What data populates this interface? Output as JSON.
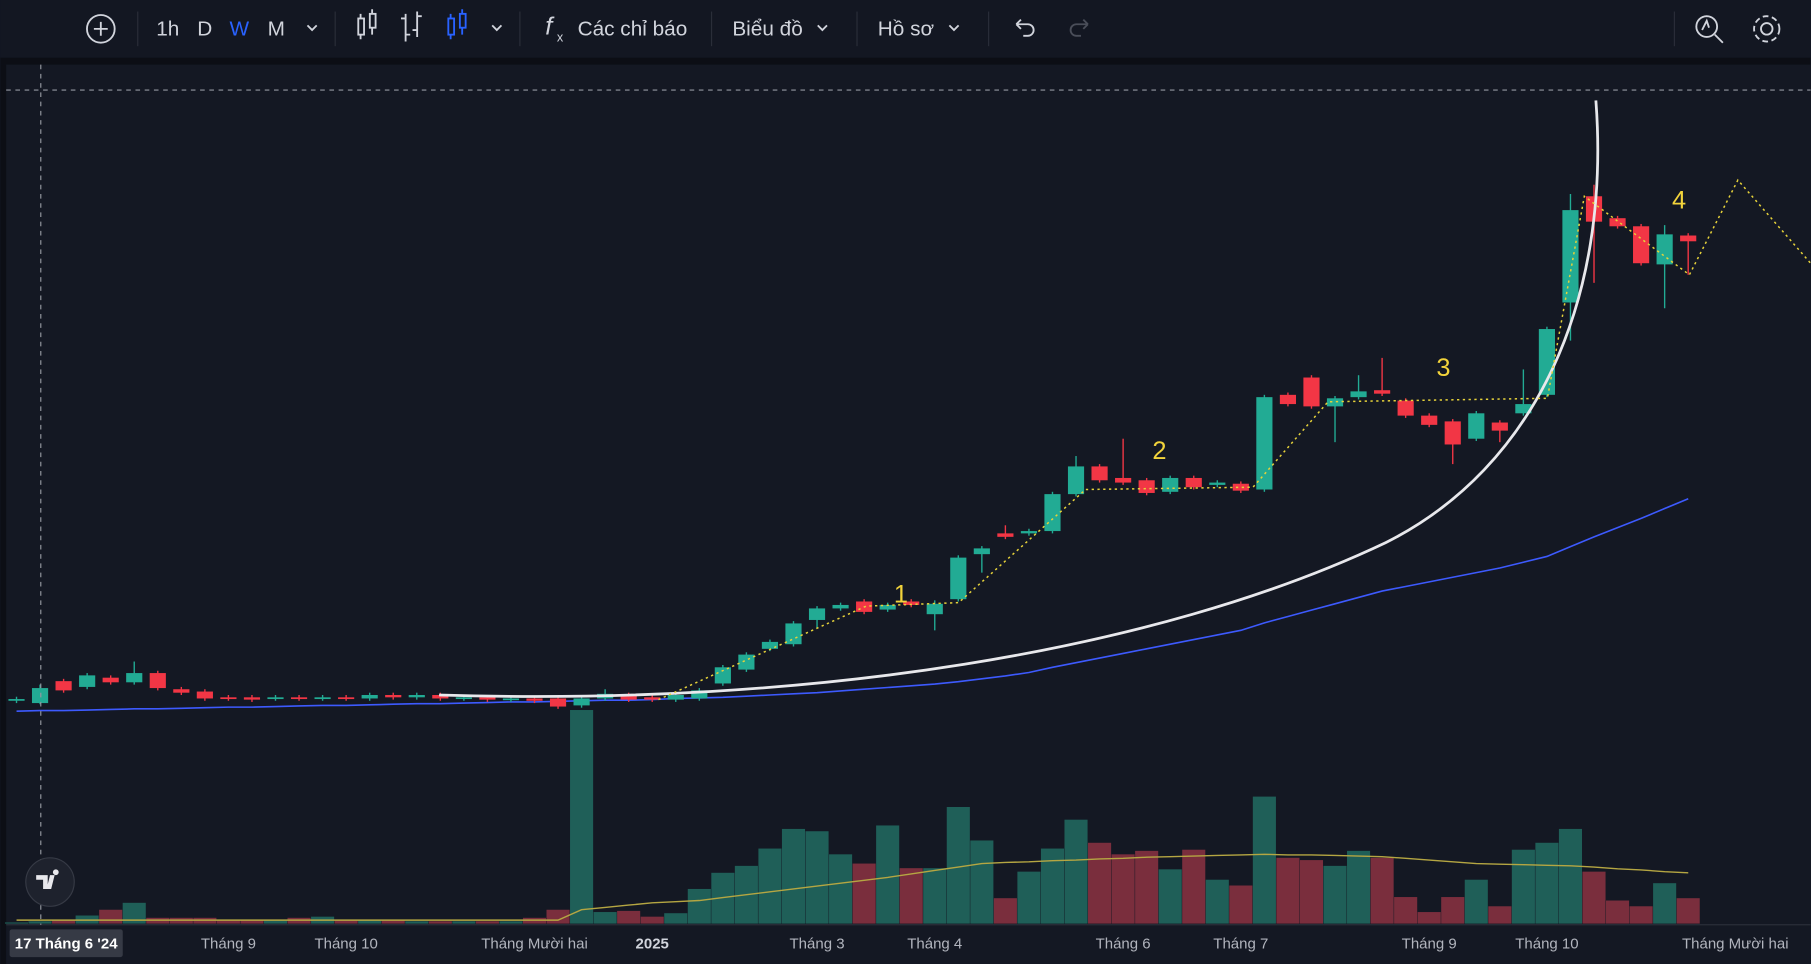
{
  "toolbar": {
    "intervals": [
      "1h",
      "D",
      "W",
      "M"
    ],
    "indicators": "Các chỉ báo",
    "chart_menu": "Biểu đồ",
    "profile": "Hồ sơ"
  },
  "chart_data": {
    "type": "candlestick",
    "up_color": "#22ab94",
    "down_color": "#f23645",
    "volume_up_color": "#1f5f58",
    "volume_down_color": "#7a2e3d",
    "ma_color": "#3d5afe",
    "volume_ma_color": "#b5a642",
    "xlim": [
      -0.44,
      76.2
    ],
    "ylim": [
      0,
      112
    ],
    "y2lim": [
      0,
      40
    ],
    "crosshair_label": "17 Tháng 6 '24",
    "xticks": [
      {
        "value": 9,
        "label": "Tháng 9"
      },
      {
        "value": 14,
        "label": "Tháng 10"
      },
      {
        "value": 22,
        "label": "Tháng Mười hai"
      },
      {
        "value": 27,
        "label": "2025"
      },
      {
        "value": 34,
        "label": "Tháng 3"
      },
      {
        "value": 39,
        "label": "Tháng 4"
      },
      {
        "value": 47,
        "label": "Tháng 6"
      },
      {
        "value": 52,
        "label": "Tháng 7"
      },
      {
        "value": 60,
        "label": "Tháng 9"
      },
      {
        "value": 65,
        "label": "Tháng 10"
      },
      {
        "value": 73,
        "label": "Tháng Mười hai"
      }
    ],
    "annotations": [
      "1",
      "2",
      "3",
      "4"
    ],
    "open": [
      6.6,
      6.2,
      10,
      9,
      10.6,
      9.8,
      11.4,
      8.6,
      8.2,
      7.2,
      7.2,
      7,
      7.2,
      7,
      7.2,
      7,
      7.6,
      7.2,
      7.6,
      7,
      7.2,
      6.8,
      7,
      7,
      5.8,
      7,
      7.6,
      7.2,
      6.8,
      7,
      9.6,
      12,
      15.6,
      16.4,
      20.6,
      22.6,
      23.8,
      22.4,
      23.8,
      21.6,
      24.2,
      32,
      35.6,
      35.6,
      36,
      42.4,
      47.2,
      45.2,
      44.8,
      42.8,
      45.2,
      44,
      44.2,
      43.2,
      59.6,
      62.6,
      57.6,
      59.2,
      60.4,
      58.6,
      56,
      55,
      52,
      54.8,
      56.4,
      59.6,
      75.6,
      94,
      90.2,
      88.8,
      82.2,
      87.2
    ],
    "high": [
      7.3,
      9.4,
      10.4,
      11.4,
      11,
      13.4,
      11.8,
      9,
      8.6,
      7.6,
      7.6,
      7.6,
      7.6,
      7.6,
      7.6,
      8,
      8,
      8,
      8,
      7.6,
      7.6,
      7.4,
      7.4,
      7.4,
      7.4,
      8.6,
      8,
      7.6,
      8,
      8.8,
      12.8,
      15,
      17.2,
      20.4,
      23,
      23.6,
      24.2,
      23.6,
      24.2,
      24,
      31.8,
      33.4,
      37,
      36.4,
      42.8,
      49,
      47.6,
      52,
      45.2,
      45.6,
      45.6,
      44.8,
      44.6,
      59.6,
      60,
      63,
      59.4,
      63,
      66,
      59,
      56.4,
      55.4,
      56.8,
      55.2,
      64,
      71.4,
      94.4,
      96,
      90.6,
      89.2,
      89,
      87.6
    ],
    "low": [
      6.2,
      6,
      8,
      8.6,
      9.4,
      9.4,
      8.4,
      7.6,
      6.6,
      6.6,
      6.4,
      6.6,
      6.6,
      6.6,
      6.6,
      6.6,
      6.8,
      6.8,
      6.6,
      6.6,
      6.4,
      6.4,
      6.2,
      5.2,
      5.4,
      6.6,
      6.4,
      6.4,
      6.4,
      6.6,
      9.2,
      11.6,
      15.2,
      16,
      19.2,
      22.2,
      21.6,
      22,
      22.8,
      18.8,
      23.8,
      28.8,
      34.6,
      35.2,
      35.6,
      42,
      44.4,
      44,
      42.2,
      42.4,
      43.2,
      43.6,
      42.6,
      42.8,
      57.6,
      57.2,
      51.4,
      58.8,
      59.4,
      55.6,
      54,
      47.6,
      51.6,
      51.4,
      56,
      59.2,
      69,
      79,
      88.4,
      82,
      74.6,
      80.4
    ],
    "close": [
      6.9,
      8.8,
      8.4,
      11,
      9.8,
      11.4,
      8.8,
      8,
      7,
      7,
      6.8,
      7.2,
      7,
      7.2,
      7,
      7.6,
      7.2,
      7.6,
      7,
      7.2,
      6.8,
      7,
      6.6,
      5.6,
      7,
      7.8,
      6.8,
      6.8,
      7.6,
      8.4,
      12.4,
      14.6,
      16.8,
      20,
      22.6,
      23.2,
      22,
      23.2,
      23.2,
      23.4,
      31.4,
      33,
      35,
      36,
      42.4,
      47.2,
      44.8,
      44.4,
      42.6,
      45.2,
      43.6,
      44.4,
      43,
      59.2,
      58,
      57.6,
      59,
      60.2,
      59.8,
      56,
      54.4,
      51,
      56.4,
      53.4,
      58,
      71,
      91.6,
      89.6,
      88.8,
      82.4,
      87.4,
      86.2
    ],
    "volume": [
      0.2,
      0.4,
      0.6,
      1.4,
      2.4,
      3.6,
      1,
      1,
      1,
      0.6,
      0.6,
      0.6,
      1,
      1.2,
      0.6,
      0.6,
      0.6,
      0.4,
      0.4,
      0.4,
      0.4,
      0.4,
      1,
      2.4,
      37,
      2,
      2.2,
      1.2,
      1.8,
      6,
      8.8,
      10,
      13,
      16.4,
      16,
      12,
      10.4,
      17,
      9.6,
      9.6,
      20.2,
      14.4,
      4.4,
      9,
      13,
      18,
      14,
      12,
      12.6,
      9.4,
      12.8,
      7.6,
      6.6,
      22,
      11.4,
      11,
      10,
      12.6,
      11.4,
      4.6,
      2,
      4.6,
      7.6,
      3,
      12.8,
      14,
      16.4,
      9,
      4,
      3,
      7,
      4.4
    ],
    "ma": [
      4.8,
      4.9,
      4.9,
      5.0,
      5.1,
      5.2,
      5.2,
      5.3,
      5.4,
      5.5,
      5.5,
      5.6,
      5.7,
      5.8,
      5.8,
      5.9,
      6.0,
      6.1,
      6.1,
      6.2,
      6.3,
      6.4,
      6.4,
      6.5,
      6.6,
      6.7,
      6.7,
      6.8,
      7.0,
      7.1,
      7.2,
      7.4,
      7.6,
      7.8,
      8.0,
      8.3,
      8.6,
      8.9,
      9.2,
      9.5,
      9.9,
      10.4,
      10.9,
      11.5,
      12.4,
      13.2,
      14.0,
      14.8,
      15.6,
      16.4,
      17.2,
      18.0,
      18.8,
      20.1,
      21.2,
      22.3,
      23.4,
      24.5,
      25.6,
      26.4,
      27.2,
      28.0,
      28.8,
      29.6,
      30.6,
      31.6,
      33.3,
      35,
      36.6,
      38.2,
      39.9,
      41.6
    ],
    "volume_ma": [
      0.6,
      0.6,
      0.6,
      0.6,
      0.6,
      0.6,
      0.6,
      0.6,
      0.6,
      0.6,
      0.6,
      0.6,
      0.6,
      0.6,
      0.6,
      0.6,
      0.6,
      0.6,
      0.6,
      0.6,
      0.6,
      0.6,
      0.6,
      0.6,
      2.4,
      2.8,
      3.2,
      3.6,
      3.8,
      4,
      4.5,
      5,
      5.5,
      6,
      6.5,
      7,
      7.5,
      8,
      8.6,
      9.2,
      9.8,
      10.4,
      10.6,
      10.7,
      10.9,
      11,
      11.2,
      11.3,
      11.5,
      11.6,
      11.7,
      11.8,
      11.9,
      12,
      11.9,
      11.9,
      11.8,
      11.7,
      11.6,
      11.3,
      11,
      10.7,
      10.4,
      10.3,
      10.2,
      10.1,
      10,
      9.8,
      9.5,
      9.3,
      9,
      8.8
    ]
  }
}
